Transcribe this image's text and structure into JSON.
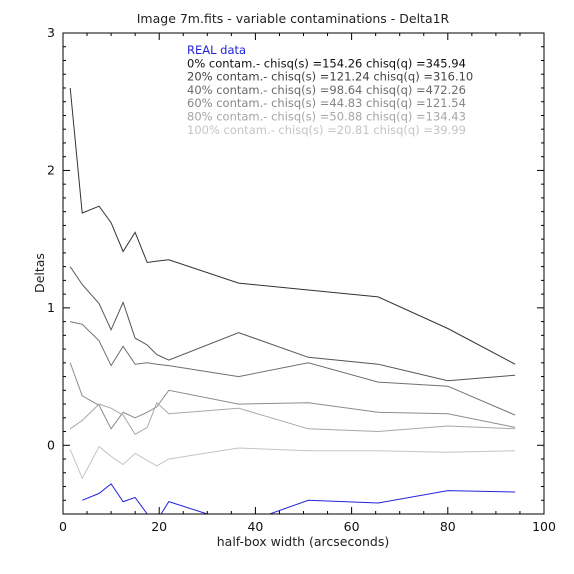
{
  "chart_data": {
    "type": "line",
    "title": "Image 7m.fits - variable contaminations - Delta1R",
    "xlabel": "half-box width (arcseconds)",
    "ylabel": "Deltas",
    "xlim": [
      0,
      100
    ],
    "ylim": [
      -0.5,
      3
    ],
    "xticks": [
      {
        "value": 0,
        "label": "0"
      },
      {
        "value": 20,
        "label": "20"
      },
      {
        "value": 40,
        "label": "40"
      },
      {
        "value": 60,
        "label": "60"
      },
      {
        "value": 80,
        "label": "80"
      },
      {
        "value": 100,
        "label": "100"
      }
    ],
    "yticks": [
      {
        "value": 0,
        "label": "0"
      },
      {
        "value": 1,
        "label": "1"
      },
      {
        "value": 2,
        "label": "2"
      },
      {
        "value": 3,
        "label": "3"
      }
    ],
    "grid": false,
    "legend_position": "top-right",
    "legend": [
      {
        "label": "REAL data",
        "color": "#2222dd"
      },
      {
        "label": "0% contam.- chisq(s) =154.26 chisq(q) =345.94",
        "color": "#111111"
      },
      {
        "label": "20% contam.- chisq(s) =121.24 chisq(q) =316.10",
        "color": "#444444"
      },
      {
        "label": "40% contam.- chisq(s) =98.64 chisq(q) =472.26",
        "color": "#6a6a6a"
      },
      {
        "label": "60% contam.- chisq(s) =44.83 chisq(q) =121.54",
        "color": "#888888"
      },
      {
        "label": "80% contam.- chisq(s) =50.88 chisq(q) =134.43",
        "color": "#a6a6a6"
      },
      {
        "label": "100% contam.- chisq(s) =20.81 chisq(q) =39.99",
        "color": "#c4c4c4"
      }
    ],
    "series": [
      {
        "name": "REAL data",
        "color": "#2222dd",
        "x": [
          4,
          7.5,
          10,
          12.5,
          15,
          17.5,
          19.5,
          22,
          30,
          36.5,
          51,
          65.5,
          80,
          94
        ],
        "y": [
          -0.4,
          -0.35,
          -0.28,
          -0.41,
          -0.38,
          -0.5,
          -0.55,
          -0.41,
          -0.5,
          -0.58,
          -0.4,
          -0.42,
          -0.33,
          -0.34
        ]
      },
      {
        "name": "0% contam.- chisq(s) =154.26 chisq(q) =345.94",
        "color": "#333333",
        "x": [
          1.5,
          4,
          7.5,
          10,
          12.5,
          15,
          17.5,
          19.5,
          22,
          36.5,
          51,
          65.5,
          80,
          94
        ],
        "y": [
          2.6,
          1.69,
          1.74,
          1.62,
          1.41,
          1.55,
          1.33,
          1.34,
          1.35,
          1.18,
          1.13,
          1.08,
          0.85,
          0.59
        ]
      },
      {
        "name": "20% contam.- chisq(s) =121.24 chisq(q) =316.10",
        "color": "#555555",
        "x": [
          1.5,
          4,
          7.5,
          10,
          12.5,
          15,
          17.5,
          19.5,
          22,
          36.5,
          51,
          65.5,
          80,
          94
        ],
        "y": [
          1.3,
          1.17,
          1.03,
          0.84,
          1.04,
          0.78,
          0.73,
          0.66,
          0.62,
          0.82,
          0.64,
          0.59,
          0.47,
          0.51
        ]
      },
      {
        "name": "40% contam.- chisq(s) =98.64 chisq(q) =472.26",
        "color": "#707070",
        "x": [
          1.5,
          4,
          7.5,
          10,
          12.5,
          15,
          17.5,
          19.5,
          22,
          36.5,
          51,
          65.5,
          80,
          94
        ],
        "y": [
          0.9,
          0.88,
          0.76,
          0.58,
          0.72,
          0.59,
          0.6,
          0.59,
          0.58,
          0.5,
          0.6,
          0.46,
          0.43,
          0.22
        ]
      },
      {
        "name": "60% contam.- chisq(s) =44.83 chisq(q) =121.54",
        "color": "#8c8c8c",
        "x": [
          1.5,
          4,
          7.5,
          10,
          12.5,
          15,
          17.5,
          19.5,
          22,
          36.5,
          51,
          65.5,
          80,
          94
        ],
        "y": [
          0.6,
          0.36,
          0.29,
          0.12,
          0.24,
          0.2,
          0.24,
          0.28,
          0.4,
          0.3,
          0.31,
          0.24,
          0.23,
          0.13
        ]
      },
      {
        "name": "80% contam.- chisq(s) =50.88 chisq(q) =134.43",
        "color": "#a8a8a8",
        "x": [
          1.5,
          4,
          7.5,
          10,
          12.5,
          15,
          17.5,
          19.5,
          22,
          36.5,
          51,
          65.5,
          80,
          94
        ],
        "y": [
          0.12,
          0.18,
          0.3,
          0.27,
          0.22,
          0.08,
          0.13,
          0.31,
          0.23,
          0.27,
          0.12,
          0.1,
          0.14,
          0.12
        ]
      },
      {
        "name": "100% contam.- chisq(s) =20.81 chisq(q) =39.99",
        "color": "#c4c4c4",
        "x": [
          1.5,
          4,
          7.5,
          10,
          12.5,
          15,
          17.5,
          19.5,
          22,
          36.5,
          51,
          65.5,
          80,
          94
        ],
        "y": [
          -0.03,
          -0.24,
          -0.01,
          -0.08,
          -0.14,
          -0.06,
          -0.11,
          -0.15,
          -0.1,
          -0.02,
          -0.04,
          -0.04,
          -0.05,
          -0.04
        ]
      }
    ]
  }
}
